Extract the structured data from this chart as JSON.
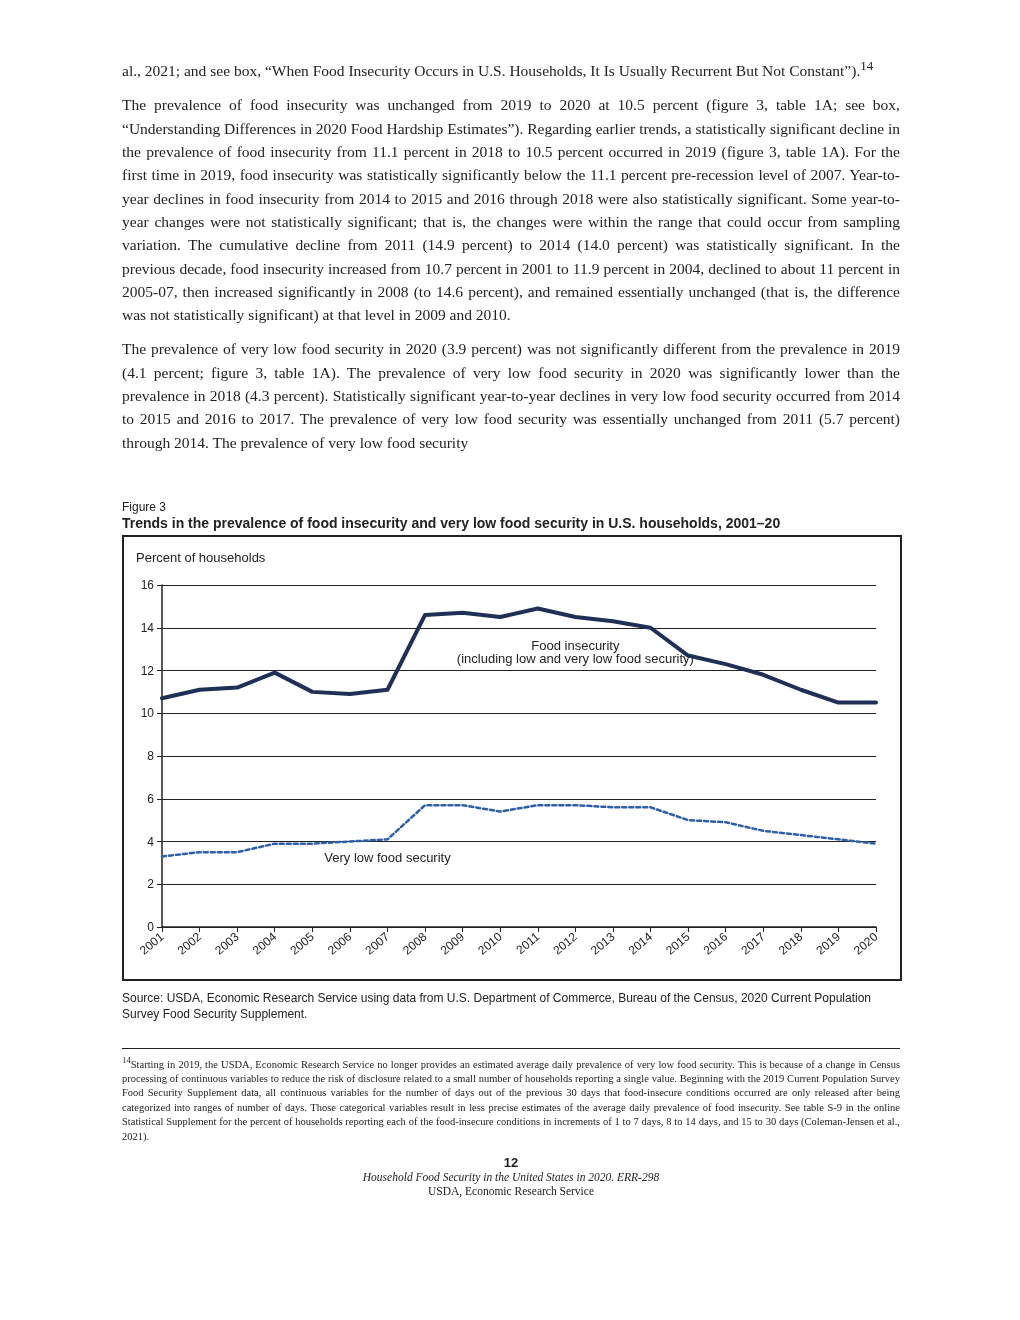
{
  "chart_data": {
    "type": "line",
    "title": "Trends in the prevalence of food insecurity and very low food security in U.S. households, 2001–20",
    "ylabel": "Percent of households",
    "categories": [
      "2001",
      "2002",
      "2003",
      "2004",
      "2005",
      "2006",
      "2007",
      "2008",
      "2009",
      "2010",
      "2011",
      "2012",
      "2013",
      "2014",
      "2015",
      "2016",
      "2017",
      "2018",
      "2019",
      "2020"
    ],
    "series": [
      {
        "name": "Food insecurity\n(including low and very low food security)",
        "color": "#1f2f56",
        "line_style": "solid",
        "values": [
          10.7,
          11.1,
          11.2,
          11.9,
          11.0,
          10.9,
          11.1,
          14.6,
          14.7,
          14.5,
          14.9,
          14.5,
          14.3,
          14.0,
          12.7,
          12.3,
          11.8,
          11.1,
          10.5,
          10.5
        ]
      },
      {
        "name": "Very low food security",
        "color": "#2e5fa8",
        "line_style": "dashed",
        "values": [
          3.3,
          3.5,
          3.5,
          3.9,
          3.9,
          4.0,
          4.1,
          5.7,
          5.7,
          5.4,
          5.7,
          5.7,
          5.6,
          5.6,
          5.0,
          4.9,
          4.5,
          4.3,
          4.1,
          3.9
        ]
      }
    ],
    "ylim": [
      0,
      16
    ],
    "yticks": [
      0,
      2,
      4,
      6,
      8,
      10,
      12,
      14,
      16
    ],
    "grid": "y",
    "legend": false,
    "marker": "none",
    "annotations": [
      "al., 2021; and see box, “When Food Insecurity Occurs in U.S. Households, It Is Usually Recurrent But Not Constant”).$^{14}$",
      "The prevalence of food insecurity was unchanged from 2019 to 2020 at 10.5 percent (figure 3, table 1A; see box, “Understanding Differences in 2020 Food Hardship Estimates”). Regarding earlier trends, a statistically significant decline in the prevalence of food insecurity from 11.1 percent in 2018 to 10.5 percent occurred in 2019 (figure 3, table 1A). For the first time in 2019, food insecurity was statistically significantly below the 11.1 percent pre-recession level of 2007. Year-to-year declines in food insecurity from 2014 to 2015 and 2016 through 2018 were also statistically significant. Some year-to-year changes were not statistically significant; that is, the changes were within the range that could occur from sampling variation. The cumulative decline from 2011 (14.9 percent) to 2014 (14.0 percent) was statistically significant. In the previous decade, food insecurity increased from 10.7 percent in 2001 to 11.9 percent in 2004, declined to about 11 percent in 2005-07, then increased significantly in 2008 (to 14.6 percent), and remained essentially unchanged (that is, the difference was not statistically significant) at that level in 2009 and 2010.",
      "The prevalence of very low food security in 2020 (3.9 percent) was not significantly different from the prevalence in 2019 (4.1 percent; figure 3, table 1A). The prevalence of very low food security in 2020 was significantly lower than the prevalence in 2018 (4.3 percent). Statistically significant year-to-year declines in very low food security occurred from 2014 to 2015 and 2016 to 2017. The prevalence of very low food security was essentially unchanged from 2011 (5.7 percent) through 2014. The prevalence of very low food security",
      "Figure 3",
      "Source: USDA, Economic Research Service using data from U.S. Department of Commerce, Bureau of the Census, 2020 Current Population Survey Food Security Supplement.",
      "$^{14}$Starting in 2019, the USDA, Economic Research Service no longer provides an estimated average daily prevalence of very low food security. This is because of a change in Census processing of continuous variables to reduce the risk of disclosure related to a small number of households reporting a single value. Beginning with the 2019 Current Population Survey Food Security Supplement data, all continuous variables for the number of days out of the previous 30 days that food-insecure conditions occurred are only released after being categorized into ranges of number of days. Those categorical variables result in less precise estimates of the average daily prevalence of food insecurity. See table S-9 in the online Statistical Supplement for the percent of households reporting each of the food-insecure conditions in increments of 1 to 7 days, 8 to 14 days, and 15 to 30 days (Coleman-Jensen et al., 2021).",
      "12",
      "Household Food Security in the United States in 2020. ERR-298",
      "USDA, Economic Research Service"
    ]
  }
}
